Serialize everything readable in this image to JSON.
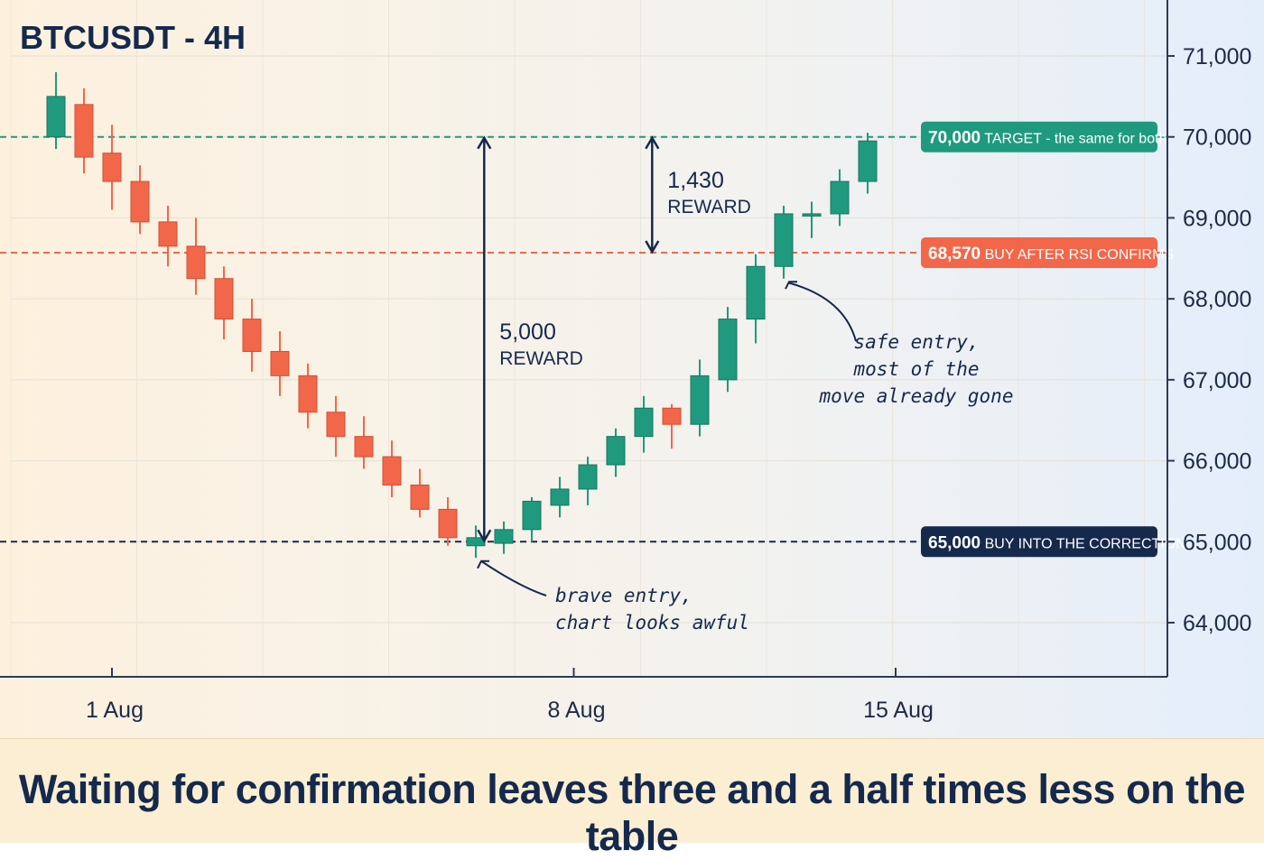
{
  "caption": "Waiting for confirmation leaves three and a half times less on the table",
  "colors": {
    "up": "#1f9a7e",
    "down": "#f26749",
    "navy": "#15294d",
    "target": "#1f9a7e",
    "safe_entry": "#f26749",
    "brave_entry": "#15294d"
  },
  "chart_data": {
    "type": "candlestick",
    "title": "BTCUSDT - 4H",
    "ylim": [
      63400,
      71600
    ],
    "y_ticks": [
      64000,
      65000,
      66000,
      67000,
      68000,
      69000,
      70000,
      71000
    ],
    "y_tick_labels": [
      "64,000",
      "65,000",
      "66,000",
      "67,000",
      "68,000",
      "69,000",
      "70,000",
      "71,000"
    ],
    "x_ticks": [
      {
        "candle": 2,
        "label": "1 Aug"
      },
      {
        "candle": 18.5,
        "label": "8 Aug"
      },
      {
        "candle": 30,
        "label": "15 Aug"
      }
    ],
    "grid": true,
    "candles": [
      {
        "o": 70000,
        "h": 70800,
        "l": 69850,
        "c": 70500
      },
      {
        "o": 70400,
        "h": 70600,
        "l": 69550,
        "c": 69750
      },
      {
        "o": 69800,
        "h": 70150,
        "l": 69100,
        "c": 69450
      },
      {
        "o": 69450,
        "h": 69650,
        "l": 68800,
        "c": 68950
      },
      {
        "o": 68950,
        "h": 69150,
        "l": 68400,
        "c": 68650
      },
      {
        "o": 68650,
        "h": 69000,
        "l": 68050,
        "c": 68250
      },
      {
        "o": 68250,
        "h": 68400,
        "l": 67500,
        "c": 67750
      },
      {
        "o": 67750,
        "h": 68000,
        "l": 67100,
        "c": 67350
      },
      {
        "o": 67350,
        "h": 67600,
        "l": 66800,
        "c": 67050
      },
      {
        "o": 67050,
        "h": 67200,
        "l": 66400,
        "c": 66600
      },
      {
        "o": 66600,
        "h": 66800,
        "l": 66050,
        "c": 66300
      },
      {
        "o": 66300,
        "h": 66550,
        "l": 65900,
        "c": 66050
      },
      {
        "o": 66050,
        "h": 66250,
        "l": 65550,
        "c": 65700
      },
      {
        "o": 65700,
        "h": 65900,
        "l": 65300,
        "c": 65400
      },
      {
        "o": 65400,
        "h": 65550,
        "l": 64950,
        "c": 65050
      },
      {
        "o": 64950,
        "h": 65200,
        "l": 64800,
        "c": 65050
      },
      {
        "o": 64980,
        "h": 65250,
        "l": 64850,
        "c": 65150
      },
      {
        "o": 65150,
        "h": 65550,
        "l": 65000,
        "c": 65500
      },
      {
        "o": 65450,
        "h": 65800,
        "l": 65300,
        "c": 65650
      },
      {
        "o": 65650,
        "h": 66050,
        "l": 65450,
        "c": 65950
      },
      {
        "o": 65950,
        "h": 66400,
        "l": 65800,
        "c": 66300
      },
      {
        "o": 66300,
        "h": 66800,
        "l": 66100,
        "c": 66650
      },
      {
        "o": 66650,
        "h": 66700,
        "l": 66150,
        "c": 66450
      },
      {
        "o": 66450,
        "h": 67250,
        "l": 66300,
        "c": 67050
      },
      {
        "o": 67000,
        "h": 67900,
        "l": 66850,
        "c": 67750
      },
      {
        "o": 67750,
        "h": 68550,
        "l": 67450,
        "c": 68400
      },
      {
        "o": 68400,
        "h": 69150,
        "l": 68250,
        "c": 69050
      },
      {
        "o": 69050,
        "h": 69200,
        "l": 68750,
        "c": 69050
      },
      {
        "o": 69050,
        "h": 69600,
        "l": 68900,
        "c": 69450
      },
      {
        "o": 69450,
        "h": 70050,
        "l": 69300,
        "c": 69950
      }
    ],
    "levels": [
      {
        "key": "target",
        "price": 70000,
        "value_label": "70,000",
        "text": "TARGET - the same for both"
      },
      {
        "key": "safe_entry",
        "price": 68570,
        "value_label": "68,570",
        "text": "BUY AFTER RSI CONFIRMS"
      },
      {
        "key": "brave_entry",
        "price": 65000,
        "value_label": "65,000",
        "text": "BUY INTO THE CORRECTION"
      }
    ],
    "reward_arrows": [
      {
        "candle": 15.3,
        "from": 65000,
        "to": 70000,
        "value": "5,000",
        "label": "REWARD"
      },
      {
        "candle": 21.3,
        "from": 68570,
        "to": 70000,
        "value": "1,430",
        "label": "REWARD"
      }
    ],
    "annotations": [
      {
        "key": "brave",
        "lines": [
          "brave entry,",
          "chart looks awful"
        ],
        "points_to_candle": 15,
        "points_to_price": 64850
      },
      {
        "key": "safe",
        "lines": [
          "safe entry,",
          "most of the",
          "move already gone"
        ],
        "points_to_candle": 26,
        "points_to_price": 68300
      }
    ]
  }
}
